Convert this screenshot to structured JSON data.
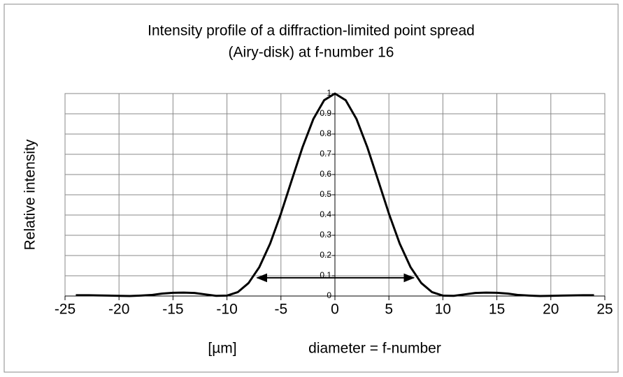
{
  "chart_data": {
    "type": "line",
    "title": "Intensity profile of a diffraction-limited point spread",
    "subtitle": "(Airy-disk) at f-number 16",
    "ylabel": "Relative intensity",
    "xlabel": "[µm]",
    "annotation": "diameter = f-number",
    "arrow": {
      "x": [
        -7.2,
        7.3
      ],
      "y": 0.09
    },
    "x": [
      -24,
      -23,
      -22,
      -21,
      -20,
      -19,
      -18,
      -17,
      -16,
      -15,
      -14,
      -13,
      -12,
      -11,
      -10,
      -9,
      -8,
      -7,
      -6,
      -5,
      -4,
      -3,
      -2,
      -1,
      0,
      1,
      2,
      3,
      4,
      5,
      6,
      7,
      8,
      9,
      10,
      11,
      12,
      13,
      14,
      15,
      16,
      17,
      18,
      19,
      20,
      21,
      22,
      23,
      24
    ],
    "values": [
      0.004,
      0.004,
      0.003,
      0.002,
      0.001,
      0.0,
      0.002,
      0.005,
      0.012,
      0.016,
      0.017,
      0.015,
      0.008,
      0.001,
      0.002,
      0.019,
      0.064,
      0.143,
      0.259,
      0.407,
      0.572,
      0.735,
      0.874,
      0.967,
      1,
      0.967,
      0.874,
      0.735,
      0.572,
      0.407,
      0.259,
      0.143,
      0.064,
      0.019,
      0.002,
      0.001,
      0.008,
      0.015,
      0.017,
      0.016,
      0.012,
      0.005,
      0.002,
      0.0,
      0.001,
      0.002,
      0.003,
      0.004,
      0.004
    ],
    "color": "#000000",
    "xlim": [
      -25,
      25
    ],
    "xticks": [
      -25,
      -20,
      -15,
      -10,
      -5,
      0,
      5,
      10,
      15,
      20,
      25
    ],
    "ylim": [
      0,
      1
    ],
    "yticks": [
      0,
      0.1,
      0.2,
      0.3,
      0.4,
      0.5,
      0.6,
      0.7,
      0.8,
      0.9,
      1
    ],
    "grid": true
  }
}
